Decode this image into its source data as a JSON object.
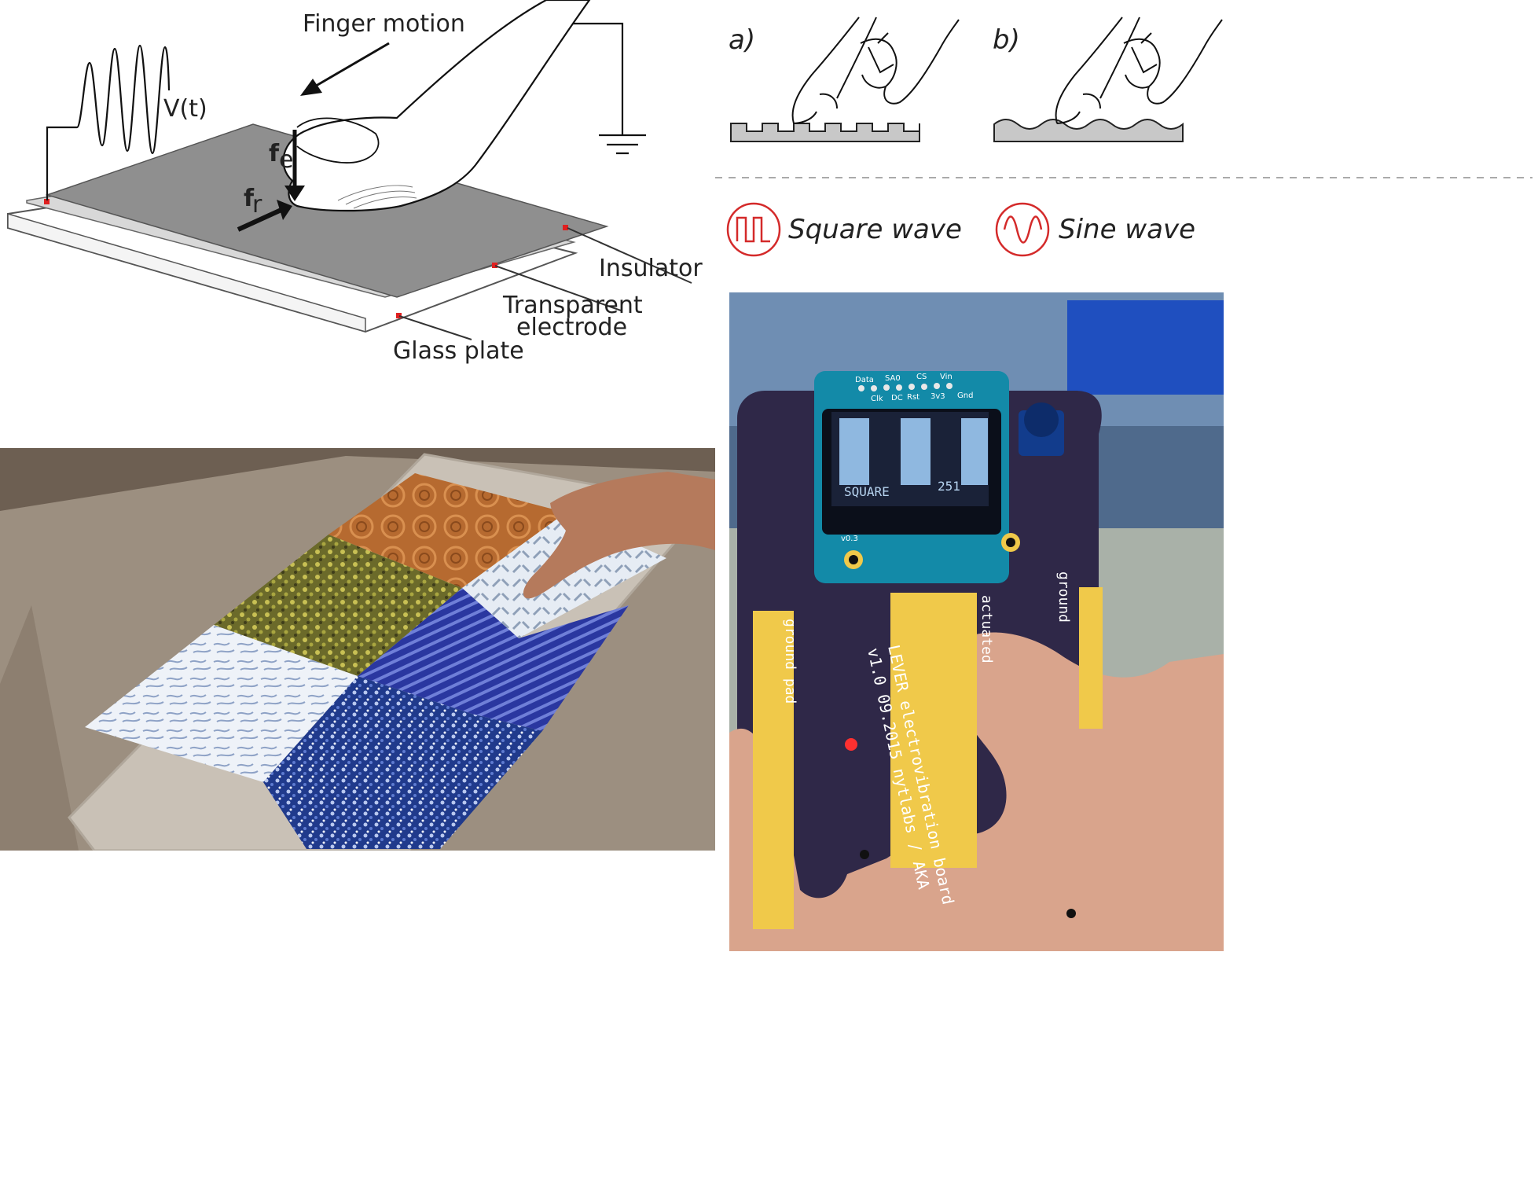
{
  "schematic": {
    "finger_motion_label": "Finger motion",
    "voltage_label": "V(t)",
    "force_e_label": "f",
    "force_e_sub": "e",
    "force_r_label": "f",
    "force_r_sub": "r",
    "insulator_label": "Insulator",
    "electrode_label_line1": "Transparent",
    "electrode_label_line2": "electrode",
    "glass_label": "Glass plate"
  },
  "textures": {
    "panel_a_label": "a)",
    "panel_b_label": "b)"
  },
  "waveforms": {
    "square_label": "Square wave",
    "sine_label": "Sine wave",
    "accent": "#d42a2a"
  },
  "board": {
    "header_top": [
      "Data",
      "SA0",
      "CS",
      "Vin"
    ],
    "header_bottom": [
      "Clk",
      "DC",
      "Rst",
      "3v3",
      "Gnd"
    ],
    "oled_mode": "SQUARE",
    "oled_value": "251",
    "version_tag": "v0.3",
    "ground_pad_label": "ground pad",
    "actuated_label": "actuated",
    "ground_right_label": "ground",
    "silk_line1": "LEVER electrovibration board",
    "silk_line2": "v1.0 09.2015 nytlabs / AKA",
    "pcb_color": "#2f2848",
    "pad_color": "#f0c94a"
  }
}
